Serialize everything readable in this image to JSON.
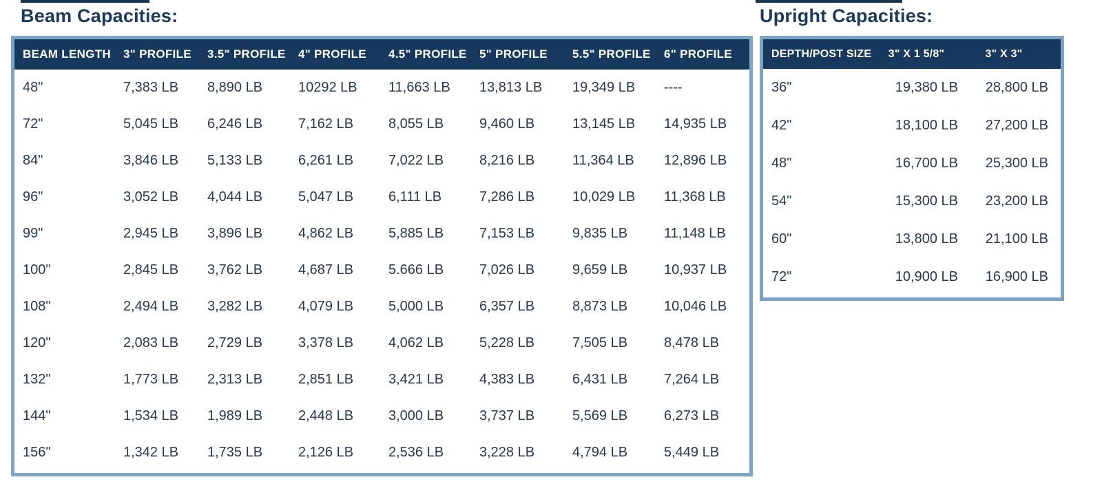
{
  "colors": {
    "title": "#1b3a5c",
    "header_bg": "#17395e",
    "header_text": "#ffffff",
    "body_text": "#28394d",
    "border": "#7ba4c7",
    "page_bg": "#ffffff"
  },
  "beam_table": {
    "title": "Beam Capacities:",
    "headers": [
      "BEAM LENGTH",
      "3\" PROFILE",
      "3.5\" PROFILE",
      "4\" PROFILE",
      "4.5\" PROFILE",
      "5\" PROFILE",
      "5.5\" PROFILE",
      "6\" PROFILE"
    ],
    "rows": [
      [
        "48\"",
        "7,383 LB",
        "8,890 LB",
        "10292 LB",
        "11,663 LB",
        "13,813 LB",
        "19,349 LB",
        "----"
      ],
      [
        "72\"",
        "5,045 LB",
        "6,246 LB",
        "7,162 LB",
        "8,055 LB",
        "9,460 LB",
        "13,145 LB",
        "14,935 LB"
      ],
      [
        "84\"",
        "3,846 LB",
        "5,133 LB",
        "6,261 LB",
        "7,022 LB",
        "8,216 LB",
        "11,364 LB",
        "12,896 LB"
      ],
      [
        "96\"",
        "3,052 LB",
        "4,044 LB",
        "5,047 LB",
        "6,111 LB",
        "7,286 LB",
        "10,029 LB",
        "11,368 LB"
      ],
      [
        "99\"",
        "2,945 LB",
        "3,896 LB",
        "4,862 LB",
        "5,885 LB",
        "7,153 LB",
        "9,835 LB",
        "11,148 LB"
      ],
      [
        "100\"",
        "2,845 LB",
        "3,762 LB",
        "4,687 LB",
        "5.666 LB",
        "7,026 LB",
        "9,659 LB",
        "10,937 LB"
      ],
      [
        "108\"",
        "2,494 LB",
        "3,282 LB",
        "4,079 LB",
        "5,000 LB",
        "6,357 LB",
        "8,873 LB",
        "10,046 LB"
      ],
      [
        "120\"",
        "2,083 LB",
        "2,729 LB",
        "3,378 LB",
        "4,062 LB",
        "5,228 LB",
        "7,505 LB",
        "8,478 LB"
      ],
      [
        "132\"",
        "1,773 LB",
        "2,313 LB",
        "2,851 LB",
        "3,421 LB",
        "4,383 LB",
        "6,431 LB",
        "7,264 LB"
      ],
      [
        "144\"",
        "1,534 LB",
        "1,989 LB",
        "2,448 LB",
        "3,000 LB",
        "3,737 LB",
        "5,569 LB",
        "6,273 LB"
      ],
      [
        "156\"",
        "1,342 LB",
        "1,735 LB",
        "2,126 LB",
        "2,536 LB",
        "3,228 LB",
        "4,794 LB",
        "5,449 LB"
      ]
    ]
  },
  "upright_table": {
    "title": "Upright Capacities:",
    "headers": [
      "DEPTH/POST SIZE",
      "3\" X 1 5/8\"",
      "3\" X 3\""
    ],
    "rows": [
      [
        "36\"",
        "19,380 LB",
        "28,800 LB"
      ],
      [
        "42\"",
        "18,100 LB",
        "27,200 LB"
      ],
      [
        "48\"",
        "16,700 LB",
        "25,300 LB"
      ],
      [
        "54\"",
        "15,300 LB",
        "23,200 LB"
      ],
      [
        "60\"",
        "13,800 LB",
        "21,100 LB"
      ],
      [
        "72\"",
        "10,900 LB",
        "16,900 LB"
      ]
    ]
  }
}
